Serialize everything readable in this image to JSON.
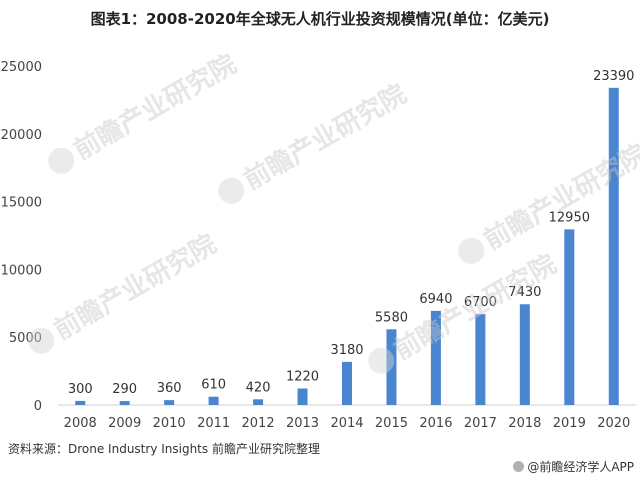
{
  "chart_data": {
    "type": "bar",
    "title": "图表1：2008-2020年全球无人机行业投资规模情况(单位：亿美元)",
    "categories": [
      "2008",
      "2009",
      "2010",
      "2011",
      "2012",
      "2013",
      "2014",
      "2015",
      "2016",
      "2017",
      "2018",
      "2019",
      "2020"
    ],
    "values": [
      300,
      290,
      360,
      610,
      420,
      1220,
      3180,
      5580,
      6940,
      6700,
      7430,
      12950,
      23390
    ],
    "data_labels": [
      "300",
      "290",
      "360",
      "610",
      "420",
      "1220",
      "3180",
      "5580",
      "6940",
      "6700",
      "7430",
      "12950",
      "23390"
    ],
    "y_ticks": [
      "0",
      "5000",
      "10000",
      "15000",
      "20000",
      "25000"
    ],
    "ylim": [
      0,
      25000
    ],
    "xlabel": "",
    "ylabel": "",
    "grid": false,
    "legend": "none",
    "bar_color": "#4a86d0"
  },
  "footer": {
    "source": "资料来源：Drone Industry Insights 前瞻产业研究院整理",
    "credit": "@前瞻经济学人APP"
  },
  "watermark": {
    "text": "前瞻产业研究院"
  }
}
